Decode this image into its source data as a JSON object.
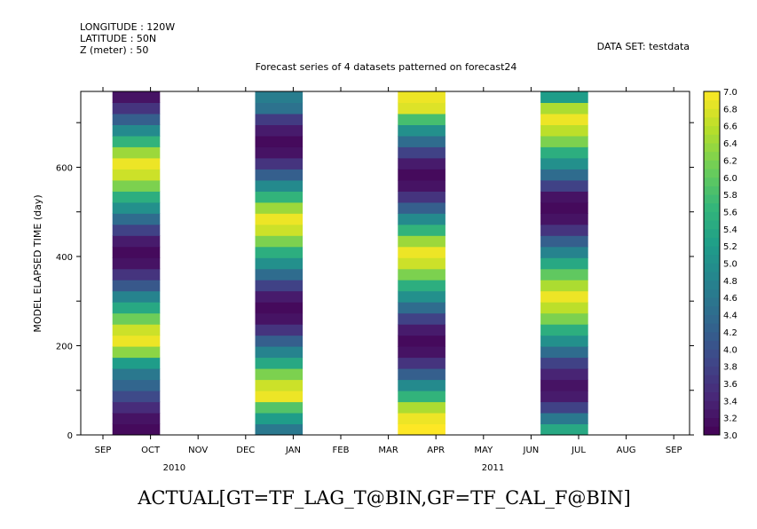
{
  "header": {
    "longitude": "LONGITUDE : 120W",
    "latitude": "LATITUDE : 50N",
    "z": "Z (meter) : 50",
    "dataset": "DATA SET: testdata"
  },
  "bottom_label": "ACTUAL[GT=TF_LAG_T@BIN,GF=TF_CAL_F@BIN]",
  "chart_data": {
    "type": "heatmap",
    "title": "Forecast series of 4 datasets patterned on forecast24",
    "xlabel": "",
    "ylabel": "MODEL ELAPSED TIME (day)",
    "x_ticks": [
      "SEP",
      "OCT",
      "NOV",
      "DEC",
      "JAN",
      "FEB",
      "MAR",
      "APR",
      "MAY",
      "JUN",
      "JUL",
      "AUG",
      "SEP"
    ],
    "x_years": [
      {
        "label": "2010",
        "month_index": 1.5
      },
      {
        "label": "2011",
        "month_index": 8.2
      }
    ],
    "ylim": [
      0,
      770
    ],
    "y_ticks": [
      0,
      200,
      400,
      600
    ],
    "colorbar": {
      "min": 3.0,
      "max": 7.0,
      "step": 0.1,
      "labels": [
        "3.0",
        "3.2",
        "3.4",
        "3.6",
        "3.8",
        "4.0",
        "4.2",
        "4.4",
        "4.6",
        "4.8",
        "5.0",
        "5.2",
        "5.4",
        "5.6",
        "5.8",
        "6.0",
        "6.2",
        "6.4",
        "6.6",
        "6.8",
        "7.0"
      ],
      "colors": [
        "#440154",
        "#482878",
        "#3e4989",
        "#31688e",
        "#26828e",
        "#1f9e89",
        "#35b779",
        "#6ece58",
        "#b5de2b",
        "#fde725"
      ]
    },
    "series": [
      {
        "month_start": 0.2,
        "month_end": 1.2,
        "values": [
          3.1,
          3.2,
          3.5,
          3.9,
          4.3,
          4.6,
          5.2,
          6.3,
          6.9,
          6.7,
          6.1,
          5.4,
          4.8,
          4.1,
          3.6,
          3.2,
          3.1,
          3.3,
          3.8,
          4.4,
          5.0,
          5.5,
          6.2,
          6.7,
          6.9,
          6.4,
          5.6,
          4.9,
          4.2,
          3.6,
          3.2
        ]
      },
      {
        "month_start": 3.2,
        "month_end": 4.2,
        "values": [
          4.6,
          5.2,
          5.9,
          6.9,
          6.7,
          6.2,
          5.4,
          4.8,
          4.2,
          3.6,
          3.2,
          3.1,
          3.3,
          3.8,
          4.4,
          5.0,
          5.5,
          6.2,
          6.7,
          6.9,
          6.4,
          5.6,
          4.9,
          4.2,
          3.6,
          3.2,
          3.1,
          3.3,
          3.7,
          4.5,
          4.7
        ]
      },
      {
        "month_start": 6.2,
        "month_end": 7.2,
        "values": [
          7.0,
          6.9,
          6.5,
          5.6,
          4.9,
          4.2,
          3.6,
          3.2,
          3.1,
          3.3,
          3.8,
          4.4,
          5.0,
          5.5,
          6.2,
          6.7,
          6.9,
          6.4,
          5.6,
          4.9,
          4.2,
          3.6,
          3.2,
          3.1,
          3.3,
          3.8,
          4.4,
          5.0,
          5.8,
          6.8,
          6.9
        ]
      },
      {
        "month_start": 9.2,
        "month_end": 10.2,
        "values": [
          5.4,
          4.6,
          3.8,
          3.3,
          3.2,
          3.4,
          3.8,
          4.4,
          5.0,
          5.5,
          6.2,
          6.6,
          6.9,
          6.5,
          6.0,
          5.4,
          4.8,
          4.2,
          3.6,
          3.2,
          3.1,
          3.2,
          3.8,
          4.4,
          5.0,
          5.5,
          6.2,
          6.6,
          6.9,
          6.5,
          5.2
        ]
      }
    ]
  }
}
